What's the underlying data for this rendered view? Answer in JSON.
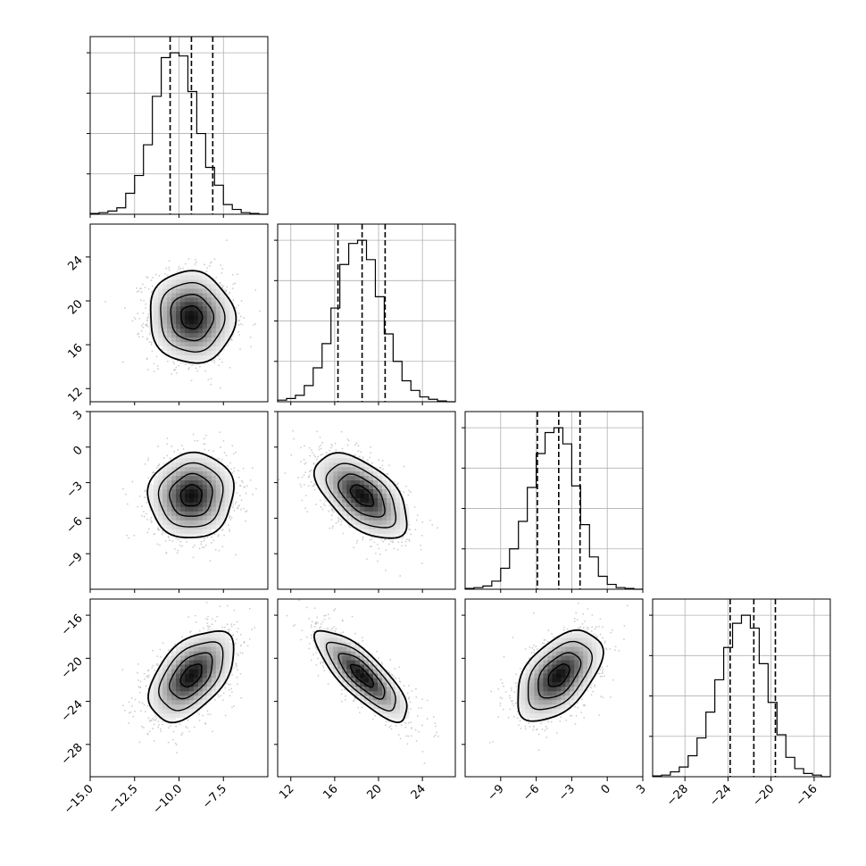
{
  "chart_data": {
    "type": "corner",
    "n_params": 4,
    "parameters": [
      {
        "index": 0,
        "label": "",
        "range": [
          -15.0,
          -5.0
        ],
        "ticks": [
          -15.0,
          -12.5,
          -10.0,
          -7.5
        ],
        "tick_labels": [
          "−15.0",
          "−12.5",
          "−10.0",
          "−7.5"
        ],
        "quantiles": [
          -10.5,
          -9.3,
          -8.1
        ],
        "bin_edges": [
          -15.0,
          -14.5,
          -14.0,
          -13.5,
          -13.0,
          -12.5,
          -12.0,
          -11.5,
          -11.0,
          -10.5,
          -10.0,
          -9.5,
          -9.0,
          -8.5,
          -8.0,
          -7.5,
          -7.0,
          -6.5,
          -6.0,
          -5.5,
          -5.0
        ],
        "hist_counts": [
          0.005,
          0.01,
          0.02,
          0.04,
          0.13,
          0.24,
          0.43,
          0.73,
          0.97,
          1.0,
          0.98,
          0.76,
          0.5,
          0.29,
          0.18,
          0.06,
          0.03,
          0.01,
          0.005,
          0.0
        ]
      },
      {
        "index": 1,
        "label": "",
        "range": [
          10.8,
          27.0
        ],
        "ticks": [
          12,
          16,
          20,
          24
        ],
        "tick_labels": [
          "12",
          "16",
          "20",
          "24"
        ],
        "quantiles": [
          16.3,
          18.5,
          20.6
        ],
        "bin_edges": [
          10.8,
          11.61,
          12.42,
          13.23,
          14.04,
          14.85,
          15.66,
          16.47,
          17.28,
          18.09,
          18.9,
          19.71,
          20.52,
          21.33,
          22.14,
          22.95,
          23.76,
          24.57,
          25.38,
          26.19,
          27.0
        ],
        "hist_counts": [
          0.01,
          0.02,
          0.04,
          0.1,
          0.21,
          0.36,
          0.58,
          0.85,
          0.98,
          1.0,
          0.88,
          0.65,
          0.42,
          0.25,
          0.13,
          0.07,
          0.03,
          0.015,
          0.005,
          0.0
        ]
      },
      {
        "index": 2,
        "label": "",
        "range": [
          -12.0,
          3.0
        ],
        "ticks": [
          -9,
          -6,
          -3,
          0,
          3
        ],
        "tick_labels": [
          "−9",
          "−6",
          "−3",
          "0",
          "3"
        ],
        "quantiles": [
          -5.9,
          -4.1,
          -2.3
        ],
        "bin_edges": [
          -12.0,
          -11.25,
          -10.5,
          -9.75,
          -9.0,
          -8.25,
          -7.5,
          -6.75,
          -6.0,
          -5.25,
          -4.5,
          -3.75,
          -3.0,
          -2.25,
          -1.5,
          -0.75,
          0.0,
          0.75,
          1.5,
          2.25,
          3.0
        ],
        "hist_counts": [
          0.005,
          0.01,
          0.02,
          0.05,
          0.13,
          0.25,
          0.42,
          0.63,
          0.84,
          0.97,
          1.0,
          0.9,
          0.64,
          0.4,
          0.2,
          0.08,
          0.03,
          0.01,
          0.005,
          0.0
        ]
      },
      {
        "index": 3,
        "label": "",
        "range": [
          -31.0,
          -14.5
        ],
        "ticks": [
          -28,
          -24,
          -20,
          -16
        ],
        "tick_labels": [
          "−28",
          "−24",
          "−20",
          "−16"
        ],
        "quantiles": [
          -23.8,
          -21.6,
          -19.6
        ],
        "bin_edges": [
          -31.0,
          -30.175,
          -29.35,
          -28.525,
          -27.7,
          -26.875,
          -26.05,
          -25.225,
          -24.4,
          -23.575,
          -22.75,
          -21.925,
          -21.1,
          -20.275,
          -19.45,
          -18.625,
          -17.8,
          -16.975,
          -16.15,
          -15.325,
          -14.5
        ],
        "hist_counts": [
          0.005,
          0.01,
          0.03,
          0.06,
          0.13,
          0.24,
          0.4,
          0.6,
          0.8,
          0.95,
          1.0,
          0.92,
          0.7,
          0.46,
          0.26,
          0.12,
          0.05,
          0.02,
          0.01,
          0.0
        ]
      }
    ],
    "pairs": [
      {
        "x": 0,
        "y": 1,
        "center": [
          -9.3,
          18.5
        ],
        "sigma": [
          1.2,
          2.1
        ],
        "rho": -0.05
      },
      {
        "x": 0,
        "y": 2,
        "center": [
          -9.3,
          -4.1
        ],
        "sigma": [
          1.2,
          1.8
        ],
        "rho": 0.05
      },
      {
        "x": 1,
        "y": 2,
        "center": [
          18.5,
          -4.1
        ],
        "sigma": [
          2.1,
          1.8
        ],
        "rho": -0.55
      },
      {
        "x": 0,
        "y": 3,
        "center": [
          -9.3,
          -21.6
        ],
        "sigma": [
          1.2,
          2.1
        ],
        "rho": 0.5
      },
      {
        "x": 1,
        "y": 3,
        "center": [
          18.5,
          -21.6
        ],
        "sigma": [
          2.1,
          2.1
        ],
        "rho": -0.8
      },
      {
        "x": 2,
        "y": 3,
        "center": [
          -4.1,
          -21.6
        ],
        "sigma": [
          1.8,
          2.1
        ],
        "rho": 0.5
      }
    ],
    "contour_levels_sigma": [
      0.5,
      1.0,
      1.5,
      2.0
    ],
    "grid": true,
    "colors": {
      "line": "#000000",
      "grid": "#b0b0b0",
      "points": "#c0c0c0",
      "density": "#000000"
    }
  }
}
